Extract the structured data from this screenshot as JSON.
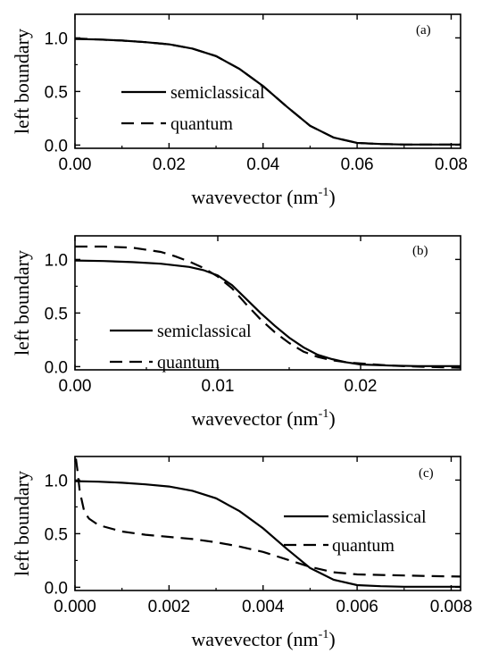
{
  "chart_data": [
    {
      "type": "line",
      "panel_label": "(a)",
      "xlabel": "wavevector (nm",
      "xlabel_sup": "-1",
      "xlabel_end": ")",
      "ylabel": "left boundary",
      "xlim": [
        0,
        0.082
      ],
      "ylim": [
        -0.03,
        1.22
      ],
      "xticks": [
        0.0,
        0.02,
        0.04,
        0.06,
        0.08
      ],
      "xtick_labels": [
        "0.00",
        "0.02",
        "0.04",
        "0.06",
        "0.08"
      ],
      "yticks": [
        0.0,
        0.5,
        1.0
      ],
      "ytick_labels": [
        "0.0",
        "0.5",
        "1.0"
      ],
      "series": [
        {
          "name": "semiclassical",
          "style": "solid",
          "x": [
            0,
            0.005,
            0.01,
            0.015,
            0.02,
            0.025,
            0.03,
            0.035,
            0.04,
            0.045,
            0.05,
            0.055,
            0.06,
            0.065,
            0.07,
            0.075,
            0.082
          ],
          "y": [
            0.99,
            0.985,
            0.975,
            0.96,
            0.94,
            0.9,
            0.83,
            0.71,
            0.55,
            0.36,
            0.18,
            0.07,
            0.02,
            0.01,
            0.005,
            0.005,
            0.005
          ]
        },
        {
          "name": "quantum",
          "style": "dashed",
          "x": [
            0,
            0.005,
            0.01,
            0.015,
            0.02,
            0.025,
            0.03,
            0.035,
            0.04,
            0.045,
            0.05,
            0.055,
            0.06,
            0.065,
            0.07,
            0.075,
            0.082
          ],
          "y": [
            0.995,
            0.985,
            0.975,
            0.96,
            0.94,
            0.9,
            0.83,
            0.71,
            0.55,
            0.36,
            0.18,
            0.07,
            0.02,
            0.01,
            0.005,
            0.005,
            0.005
          ]
        }
      ],
      "legend": [
        "semiclassical",
        "quantum"
      ]
    },
    {
      "type": "line",
      "panel_label": "(b)",
      "xlabel": "wavevector (nm",
      "xlabel_sup": "-1",
      "xlabel_end": ")",
      "ylabel": "left boundary",
      "xlim": [
        0,
        0.027
      ],
      "ylim": [
        -0.03,
        1.22
      ],
      "xticks": [
        0.0,
        0.01,
        0.02
      ],
      "xtick_labels": [
        "0.00",
        "0.01",
        "0.02"
      ],
      "yticks": [
        0.0,
        0.5,
        1.0
      ],
      "ytick_labels": [
        "0.0",
        "0.5",
        "1.0"
      ],
      "series": [
        {
          "name": "semiclassical",
          "style": "solid",
          "x": [
            0,
            0.002,
            0.004,
            0.006,
            0.008,
            0.009,
            0.01,
            0.011,
            0.012,
            0.013,
            0.014,
            0.015,
            0.016,
            0.017,
            0.018,
            0.019,
            0.02,
            0.022,
            0.024,
            0.027
          ],
          "y": [
            0.99,
            0.985,
            0.975,
            0.96,
            0.93,
            0.9,
            0.85,
            0.76,
            0.63,
            0.5,
            0.38,
            0.27,
            0.18,
            0.11,
            0.07,
            0.04,
            0.02,
            0.01,
            0.005,
            0.005
          ]
        },
        {
          "name": "quantum",
          "style": "dashed",
          "x": [
            0,
            0.002,
            0.004,
            0.006,
            0.007,
            0.008,
            0.009,
            0.01,
            0.011,
            0.012,
            0.013,
            0.014,
            0.015,
            0.016,
            0.017,
            0.018,
            0.019,
            0.02,
            0.022,
            0.024,
            0.027
          ],
          "y": [
            1.12,
            1.12,
            1.11,
            1.07,
            1.03,
            0.98,
            0.92,
            0.84,
            0.73,
            0.58,
            0.44,
            0.32,
            0.22,
            0.14,
            0.09,
            0.06,
            0.04,
            0.03,
            0.01,
            0.0,
            -0.01
          ]
        }
      ],
      "legend": [
        "semiclassical",
        "quantum"
      ]
    },
    {
      "type": "line",
      "panel_label": "(c)",
      "xlabel": "wavevector (nm",
      "xlabel_sup": "-1",
      "xlabel_end": ")",
      "ylabel": "left boundary",
      "xlim": [
        0,
        0.0082
      ],
      "ylim": [
        -0.03,
        1.22
      ],
      "xticks": [
        0.0,
        0.002,
        0.004,
        0.006,
        0.008
      ],
      "xtick_labels": [
        "0.000",
        "0.002",
        "0.004",
        "0.006",
        "0.008"
      ],
      "yticks": [
        0.0,
        0.5,
        1.0
      ],
      "ytick_labels": [
        "0.0",
        "0.5",
        "1.0"
      ],
      "series": [
        {
          "name": "semiclassical",
          "style": "solid",
          "x": [
            0,
            0.0005,
            0.001,
            0.0015,
            0.002,
            0.0025,
            0.003,
            0.0035,
            0.004,
            0.0045,
            0.005,
            0.0055,
            0.006,
            0.0065,
            0.007,
            0.0075,
            0.0082
          ],
          "y": [
            0.99,
            0.985,
            0.975,
            0.96,
            0.94,
            0.9,
            0.83,
            0.71,
            0.55,
            0.36,
            0.18,
            0.07,
            0.02,
            0.01,
            0.005,
            0.005,
            0.005
          ]
        },
        {
          "name": "quantum",
          "style": "dashed",
          "x": [
            2e-05,
            5e-05,
            0.0001,
            0.0002,
            0.0003,
            0.0005,
            0.001,
            0.0015,
            0.002,
            0.0025,
            0.003,
            0.0035,
            0.004,
            0.0045,
            0.005,
            0.0055,
            0.006,
            0.0065,
            0.007,
            0.0075,
            0.0082
          ],
          "y": [
            1.2,
            1.1,
            0.9,
            0.7,
            0.64,
            0.58,
            0.52,
            0.49,
            0.47,
            0.45,
            0.42,
            0.38,
            0.33,
            0.26,
            0.19,
            0.14,
            0.12,
            0.115,
            0.11,
            0.105,
            0.1
          ]
        }
      ],
      "legend": [
        "semiclassical",
        "quantum"
      ]
    }
  ]
}
